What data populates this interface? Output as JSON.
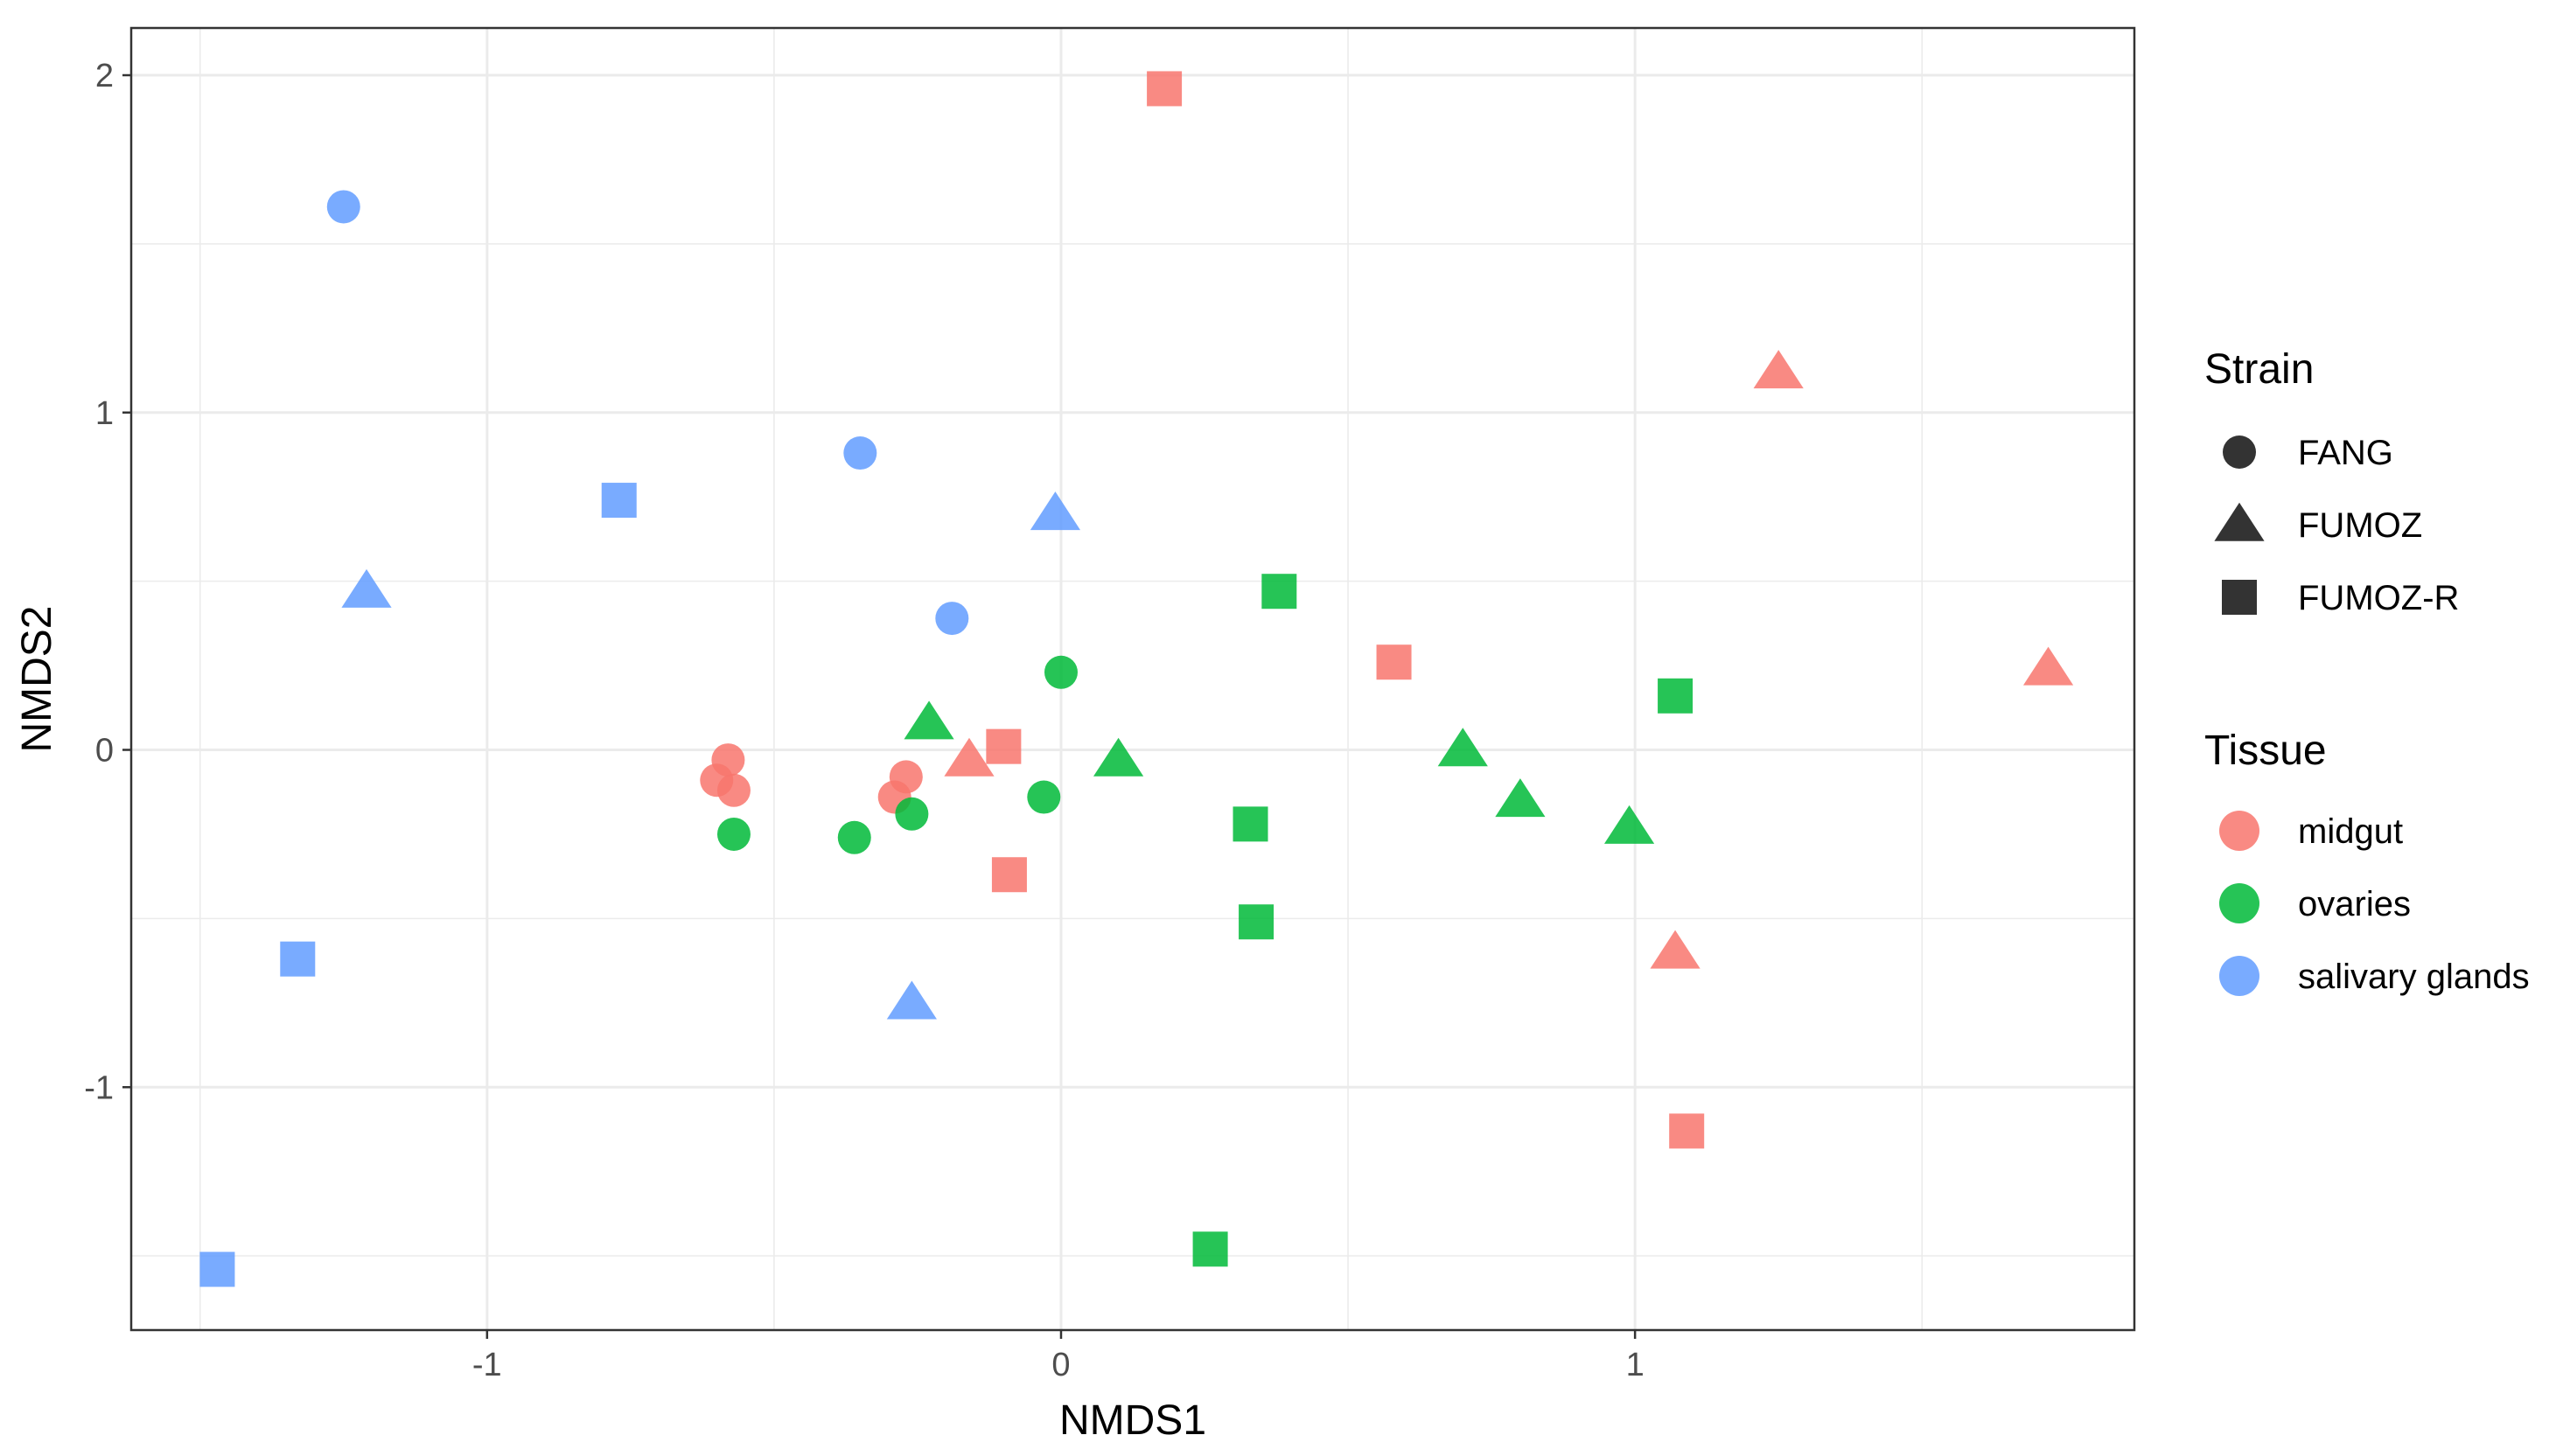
{
  "chart_data": {
    "type": "scatter",
    "title": "",
    "xlabel": "NMDS1",
    "ylabel": "NMDS2",
    "xlim": [
      -1.62,
      1.87
    ],
    "ylim": [
      -1.72,
      2.14
    ],
    "x_ticks": [
      -1,
      0,
      1
    ],
    "x_tick_labels": [
      "-1",
      "0",
      "1"
    ],
    "y_ticks": [
      -1,
      0,
      1,
      2
    ],
    "y_tick_labels": [
      "-1",
      "0",
      "1",
      "2"
    ],
    "grid": true,
    "legend_position": "right",
    "legends": {
      "strain": {
        "title": "Strain",
        "items": [
          {
            "label": "FANG",
            "shape": "circle"
          },
          {
            "label": "FUMOZ",
            "shape": "triangle"
          },
          {
            "label": "FUMOZ-R",
            "shape": "square"
          }
        ]
      },
      "tissue": {
        "title": "Tissue",
        "items": [
          {
            "label": "midgut",
            "color": "#F8766D"
          },
          {
            "label": "ovaries",
            "color": "#00BA38"
          },
          {
            "label": "salivary glands",
            "color": "#619CFF"
          }
        ]
      }
    },
    "series": [
      {
        "tissue": "midgut",
        "strain": "FANG",
        "points": [
          [
            -0.58,
            -0.03
          ],
          [
            -0.6,
            -0.09
          ],
          [
            -0.57,
            -0.12
          ],
          [
            -0.27,
            -0.08
          ],
          [
            -0.29,
            -0.14
          ]
        ]
      },
      {
        "tissue": "midgut",
        "strain": "FUMOZ",
        "points": [
          [
            1.25,
            1.12
          ],
          [
            1.72,
            0.24
          ],
          [
            1.07,
            -0.6
          ],
          [
            -0.16,
            -0.03
          ]
        ]
      },
      {
        "tissue": "midgut",
        "strain": "FUMOZ-R",
        "points": [
          [
            0.18,
            1.96
          ],
          [
            0.58,
            0.26
          ],
          [
            1.09,
            -1.13
          ],
          [
            -0.1,
            0.01
          ],
          [
            -0.09,
            -0.37
          ]
        ]
      },
      {
        "tissue": "ovaries",
        "strain": "FANG",
        "points": [
          [
            0.0,
            0.23
          ],
          [
            -0.57,
            -0.25
          ],
          [
            -0.36,
            -0.26
          ],
          [
            -0.26,
            -0.19
          ],
          [
            -0.03,
            -0.14
          ]
        ]
      },
      {
        "tissue": "ovaries",
        "strain": "FUMOZ",
        "points": [
          [
            -0.23,
            0.08
          ],
          [
            0.1,
            -0.03
          ],
          [
            0.7,
            0.0
          ],
          [
            0.8,
            -0.15
          ],
          [
            0.99,
            -0.23
          ]
        ]
      },
      {
        "tissue": "ovaries",
        "strain": "FUMOZ-R",
        "points": [
          [
            0.38,
            0.47
          ],
          [
            1.07,
            0.16
          ],
          [
            0.33,
            -0.22
          ],
          [
            0.34,
            -0.51
          ],
          [
            0.26,
            -1.48
          ]
        ]
      },
      {
        "tissue": "salivary glands",
        "strain": "FANG",
        "points": [
          [
            -1.25,
            1.61
          ],
          [
            -0.35,
            0.88
          ],
          [
            -0.19,
            0.39
          ]
        ]
      },
      {
        "tissue": "salivary glands",
        "strain": "FUMOZ",
        "points": [
          [
            -1.21,
            0.47
          ],
          [
            -0.01,
            0.7
          ],
          [
            -0.26,
            -0.75
          ]
        ]
      },
      {
        "tissue": "salivary glands",
        "strain": "FUMOZ-R",
        "points": [
          [
            -0.77,
            0.74
          ],
          [
            -1.33,
            -0.62
          ],
          [
            -1.47,
            -1.54
          ]
        ]
      }
    ]
  }
}
